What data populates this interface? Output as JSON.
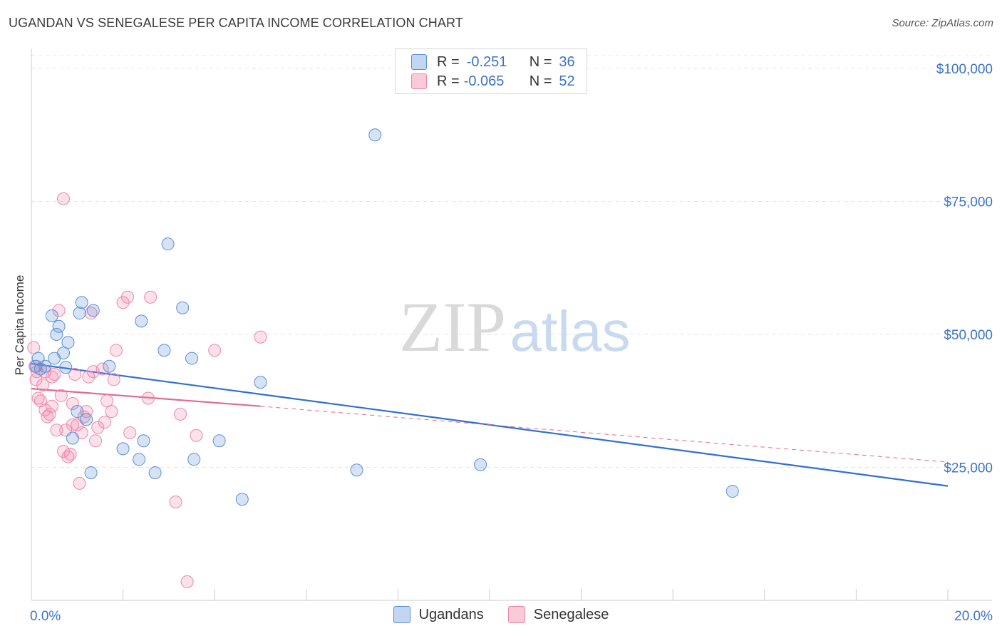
{
  "header": {
    "title": "UGANDAN VS SENEGALESE PER CAPITA INCOME CORRELATION CHART",
    "source": "Source: ZipAtlas.com"
  },
  "legend": {
    "rows": [
      {
        "r_label": "R =",
        "r_value": "-0.251",
        "n_label": "N =",
        "n_value": "36"
      },
      {
        "r_label": "R =",
        "r_value": "-0.065",
        "n_label": "N =",
        "n_value": "52"
      }
    ]
  },
  "watermark": {
    "zip": "ZIP",
    "atlas": "atlas"
  },
  "chart_data": {
    "type": "scatter",
    "title": "UGANDAN VS SENEGALESE PER CAPITA INCOME CORRELATION CHART",
    "xlabel": "",
    "ylabel": "Per Capita Income",
    "xlim": [
      0,
      20
    ],
    "ylim": [
      0,
      105000
    ],
    "x_tick_labels": [
      "0.0%",
      "20.0%"
    ],
    "y_ticks": [
      25000,
      50000,
      75000,
      100000
    ],
    "y_tick_labels": [
      "$25,000",
      "$50,000",
      "$75,000",
      "$100,000"
    ],
    "colors": {
      "ugandans": "#5b8fd9",
      "senegalese": "#ee88aa",
      "ugandans_line": "#2f6fd0",
      "senegalese_line": "#e06a93",
      "axis_text": "#3b73c8"
    },
    "series": [
      {
        "name": "Ugandans",
        "r": -0.251,
        "n": 36,
        "trend": {
          "x0": 0.0,
          "y0": 44500,
          "x1": 20.0,
          "y1": 21500
        },
        "points": [
          [
            0.15,
            45500
          ],
          [
            0.2,
            43500
          ],
          [
            0.3,
            44000
          ],
          [
            0.45,
            53500
          ],
          [
            0.5,
            45500
          ],
          [
            0.55,
            50000
          ],
          [
            0.6,
            51500
          ],
          [
            0.7,
            46500
          ],
          [
            0.75,
            43800
          ],
          [
            0.8,
            48500
          ],
          [
            0.9,
            30500
          ],
          [
            1.0,
            35500
          ],
          [
            1.05,
            54000
          ],
          [
            1.1,
            56000
          ],
          [
            1.2,
            34000
          ],
          [
            1.3,
            24000
          ],
          [
            1.35,
            54500
          ],
          [
            1.7,
            44000
          ],
          [
            2.0,
            28500
          ],
          [
            2.35,
            26500
          ],
          [
            2.4,
            52500
          ],
          [
            2.45,
            30000
          ],
          [
            2.7,
            24000
          ],
          [
            2.9,
            47000
          ],
          [
            2.98,
            67000
          ],
          [
            3.3,
            55000
          ],
          [
            3.5,
            45500
          ],
          [
            3.55,
            26500
          ],
          [
            4.1,
            30000
          ],
          [
            4.6,
            19000
          ],
          [
            5.0,
            41000
          ],
          [
            7.1,
            24500
          ],
          [
            7.5,
            87500
          ],
          [
            9.8,
            25500
          ],
          [
            15.3,
            20500
          ],
          [
            0.1,
            44000
          ]
        ]
      },
      {
        "name": "Senegalese",
        "r": -0.065,
        "n": 52,
        "trend": {
          "x0": 0.0,
          "y0": 39800,
          "x1": 5.0,
          "y1": 36500,
          "dash_x1": 20.0,
          "dash_y1": 26000
        },
        "points": [
          [
            0.05,
            47500
          ],
          [
            0.08,
            44000
          ],
          [
            0.1,
            41500
          ],
          [
            0.12,
            43000
          ],
          [
            0.15,
            38000
          ],
          [
            0.2,
            37500
          ],
          [
            0.25,
            40500
          ],
          [
            0.3,
            43000
          ],
          [
            0.35,
            34500
          ],
          [
            0.4,
            35000
          ],
          [
            0.45,
            42000
          ],
          [
            0.5,
            42500
          ],
          [
            0.55,
            32000
          ],
          [
            0.6,
            54500
          ],
          [
            0.65,
            38500
          ],
          [
            0.7,
            75500
          ],
          [
            0.75,
            32000
          ],
          [
            0.8,
            27000
          ],
          [
            0.85,
            27500
          ],
          [
            0.9,
            33000
          ],
          [
            0.95,
            42500
          ],
          [
            1.0,
            33000
          ],
          [
            1.05,
            22000
          ],
          [
            1.1,
            31500
          ],
          [
            1.15,
            34500
          ],
          [
            1.2,
            35500
          ],
          [
            1.25,
            42000
          ],
          [
            1.3,
            54000
          ],
          [
            1.35,
            43000
          ],
          [
            1.4,
            30000
          ],
          [
            1.45,
            32500
          ],
          [
            1.55,
            43500
          ],
          [
            1.6,
            33500
          ],
          [
            1.65,
            37500
          ],
          [
            1.75,
            35500
          ],
          [
            1.8,
            41500
          ],
          [
            1.85,
            47000
          ],
          [
            2.0,
            56000
          ],
          [
            2.1,
            57000
          ],
          [
            2.15,
            31500
          ],
          [
            2.55,
            38000
          ],
          [
            2.6,
            57000
          ],
          [
            3.15,
            18500
          ],
          [
            3.25,
            35000
          ],
          [
            3.4,
            3500
          ],
          [
            3.6,
            31000
          ],
          [
            4.0,
            47000
          ],
          [
            5.0,
            49500
          ],
          [
            0.45,
            36500
          ],
          [
            0.3,
            35800
          ],
          [
            0.9,
            37000
          ],
          [
            0.7,
            28000
          ]
        ]
      }
    ]
  }
}
